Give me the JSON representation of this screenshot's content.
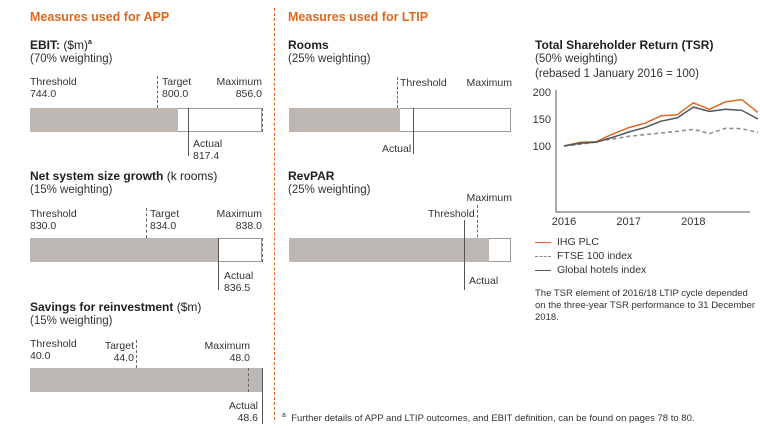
{
  "app": {
    "header": "Measures used for APP"
  },
  "ltip": {
    "header": "Measures used for LTIP"
  },
  "ebit": {
    "title": "EBIT:",
    "unit": "($m)",
    "sup": "a",
    "weighting": "(70% weighting)",
    "threshold_label": "Threshold",
    "threshold": "744.0",
    "target_label": "Target",
    "target": "800.0",
    "maximum_label": "Maximum",
    "maximum": "856.0",
    "actual_label": "Actual",
    "actual": "817.4",
    "fill_fraction": 0.64
  },
  "nssg": {
    "title": "Net system size growth",
    "unit": "(k rooms)",
    "weighting": "(15% weighting)",
    "threshold_label": "Threshold",
    "threshold": "830.0",
    "target_label": "Target",
    "target": "834.0",
    "maximum_label": "Maximum",
    "maximum": "838.0",
    "actual_label": "Actual",
    "actual": "836.5",
    "fill_fraction": 0.81
  },
  "savings": {
    "title": "Savings for reinvestment",
    "unit": "($m)",
    "weighting": "(15% weighting)",
    "threshold_label": "Threshold",
    "threshold": "40.0",
    "target_label": "Target",
    "target": "44.0",
    "maximum_label": "Maximum",
    "maximum": "48.0",
    "actual_label": "Actual",
    "actual": "48.6",
    "fill_fraction": 1.0
  },
  "rooms": {
    "title": "Rooms",
    "weighting": "(25% weighting)",
    "threshold_label": "Threshold",
    "maximum_label": "Maximum",
    "actual_label": "Actual",
    "fill_fraction": 0.5
  },
  "revpar": {
    "title": "RevPAR",
    "weighting": "(25% weighting)",
    "threshold_label": "Threshold",
    "maximum_label": "Maximum",
    "actual_label": "Actual",
    "fill_fraction": 0.9
  },
  "tsr": {
    "title": "Total Shareholder Return (TSR)",
    "weighting": "(50% weighting)",
    "rebased": "(rebased 1 January 2016 = 100)",
    "note": "The TSR element of 2016/18 LTIP cycle depended on the three-year TSR performance to 31 December 2018."
  },
  "footnote": {
    "mark": "a",
    "text": "Further details of APP and LTIP outcomes, and EBIT definition, can be found on pages 78 to 80."
  },
  "chart_data": {
    "type": "line",
    "title": "Total Shareholder Return (TSR)",
    "xlabel": "",
    "ylabel": "",
    "xlim": [
      2016,
      2019
    ],
    "ylim": [
      100,
      200
    ],
    "xticks": [
      2016,
      2017,
      2018
    ],
    "yticks": [
      100,
      150,
      200
    ],
    "x": [
      2016.0,
      2016.25,
      2016.5,
      2016.75,
      2017.0,
      2017.25,
      2017.5,
      2017.75,
      2018.0,
      2018.25,
      2018.5,
      2018.75,
      2019.0
    ],
    "series": [
      {
        "name": "IHG PLC",
        "color": "#e0681e",
        "dash": "solid",
        "values": [
          100,
          107,
          108,
          122,
          134,
          142,
          156,
          158,
          180,
          168,
          182,
          186,
          162
        ]
      },
      {
        "name": "FTSE 100 index",
        "color": "#8a8a8a",
        "dash": "dashed",
        "values": [
          100,
          103,
          108,
          113,
          118,
          121,
          124,
          127,
          131,
          123,
          133,
          132,
          125
        ]
      },
      {
        "name": "Global hotels index",
        "color": "#4e5661",
        "dash": "solid",
        "values": [
          100,
          105,
          107,
          116,
          126,
          134,
          146,
          152,
          172,
          164,
          168,
          166,
          150
        ]
      }
    ],
    "legend": "bottom"
  }
}
